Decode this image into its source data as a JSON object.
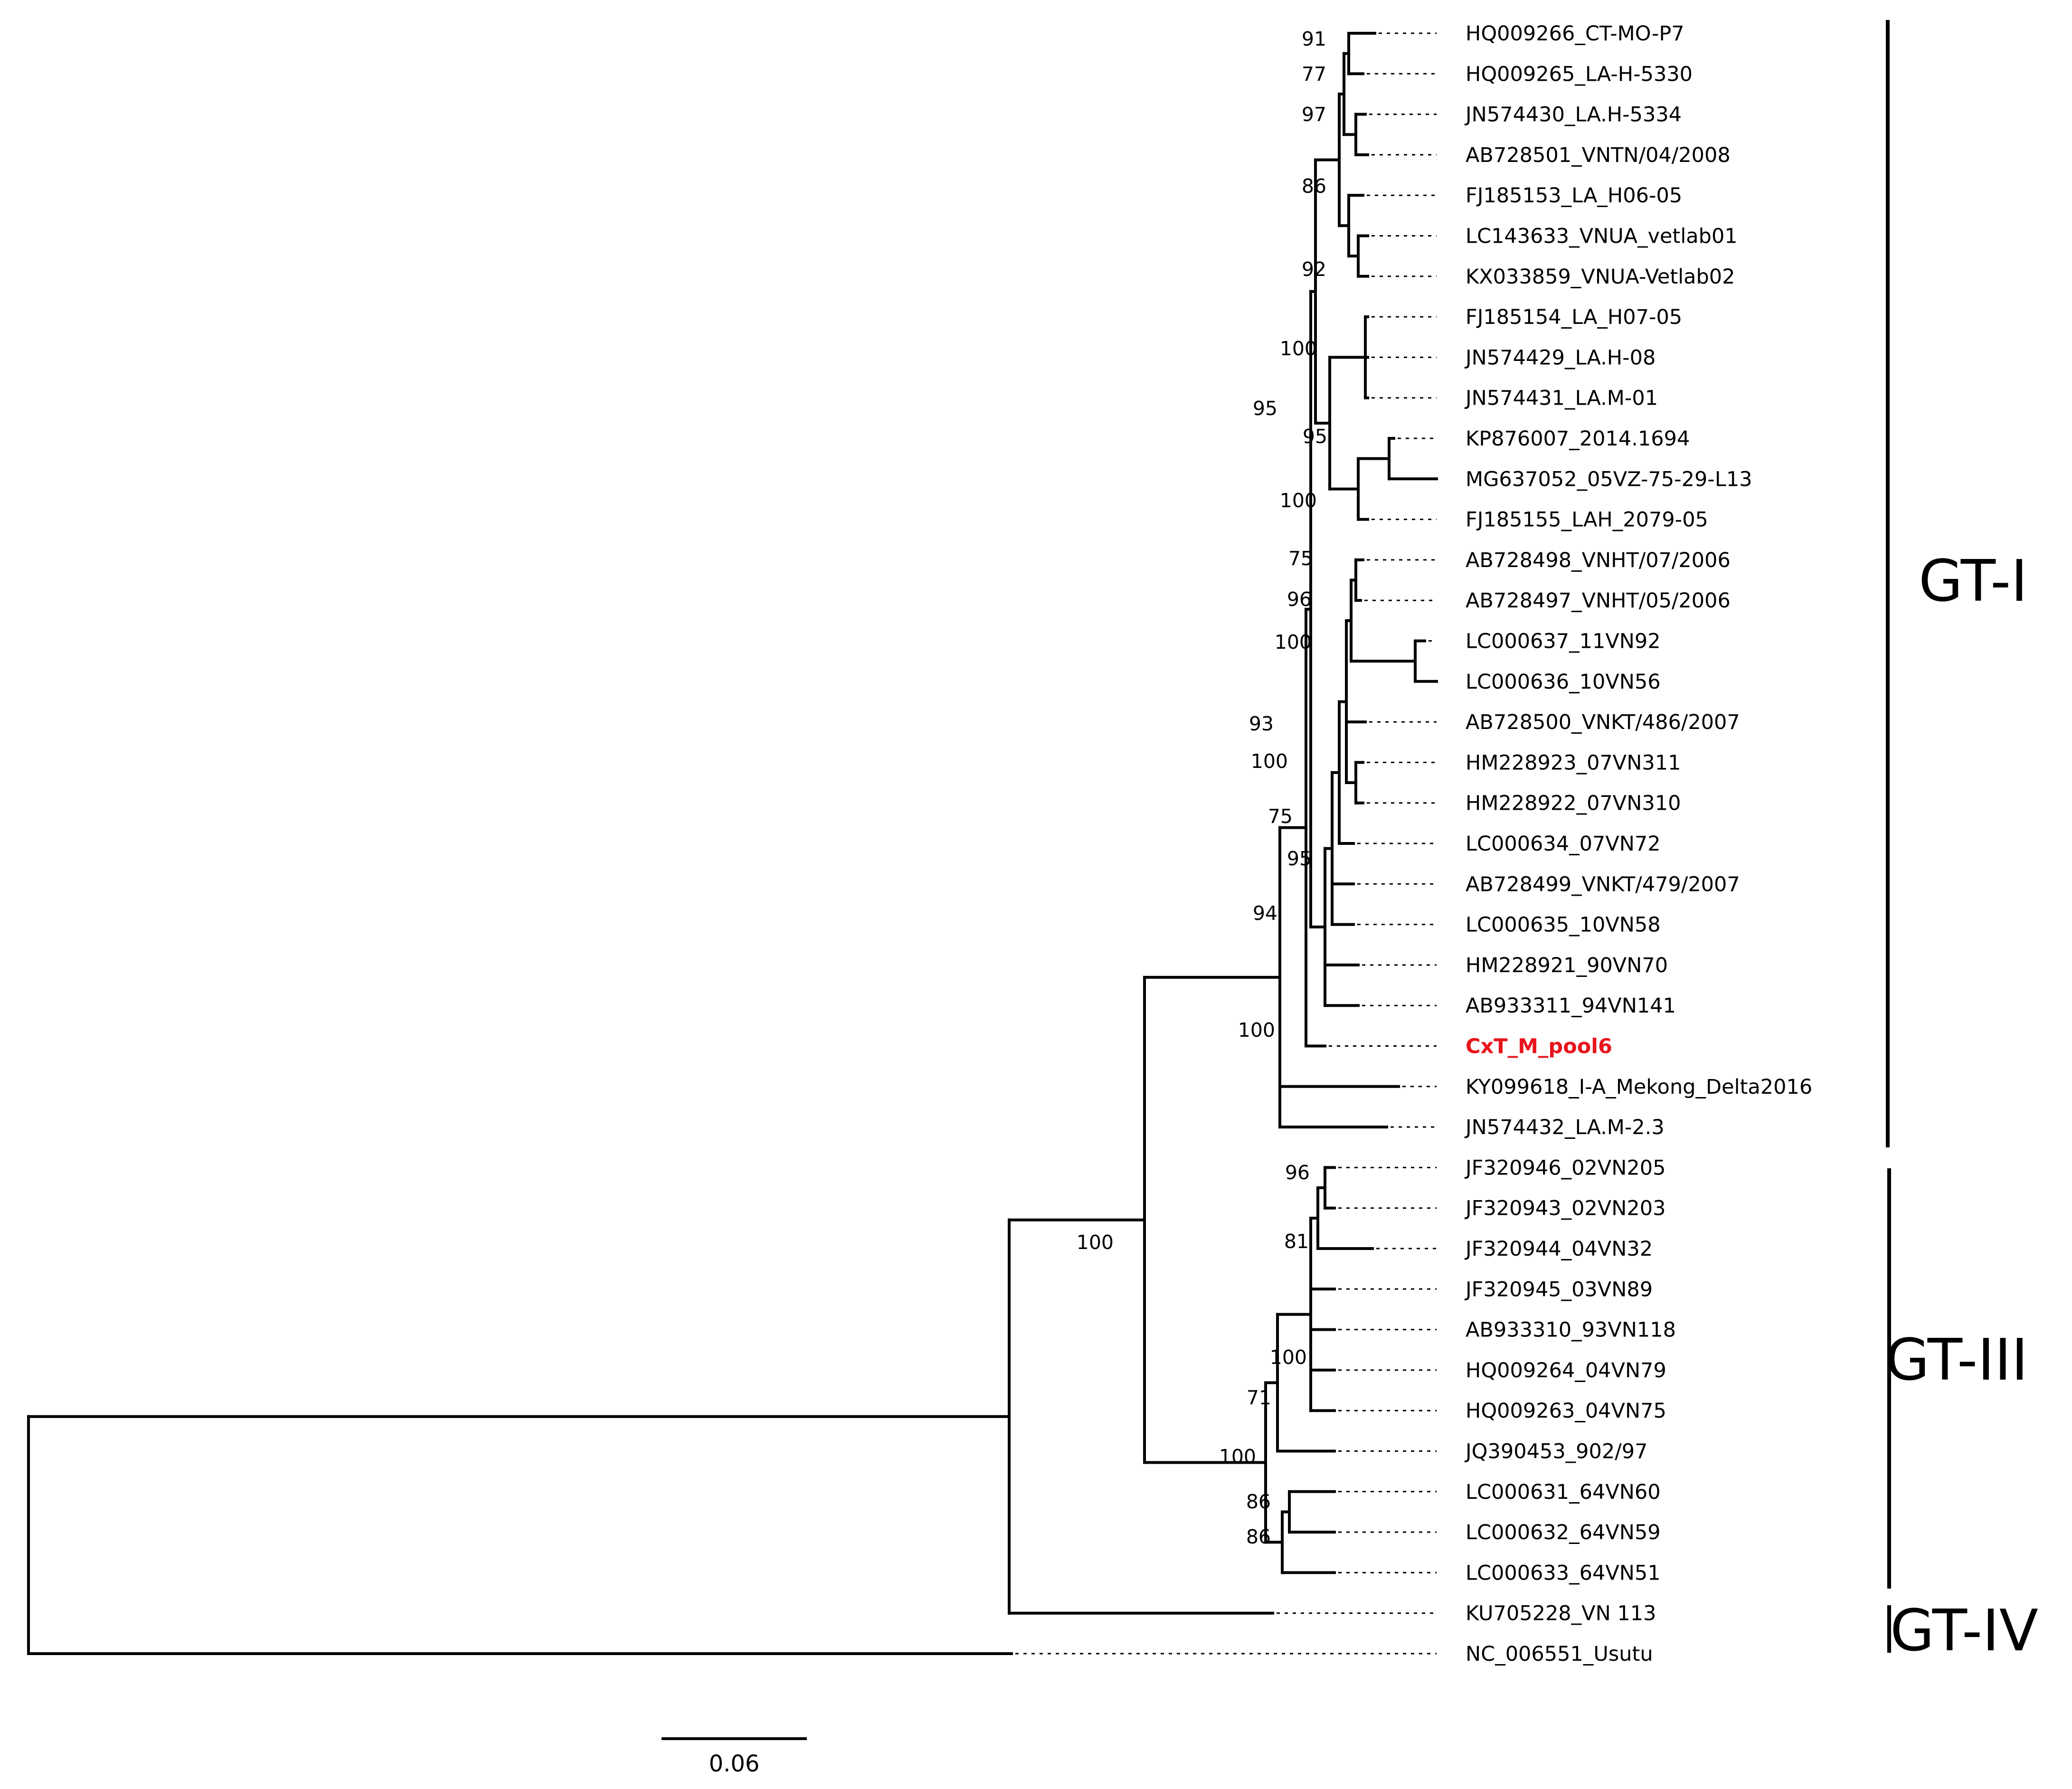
{
  "tree": {
    "highlight_color": "#e8141c",
    "scale_bar_label": "0.06",
    "taxa": [
      "HQ009266_CT-MO-P7",
      "HQ009265_LA-H-5330",
      "JN574430_LA.H-5334",
      "AB728501_VNTN/04/2008",
      "FJ185153_LA_H06-05",
      "LC143633_VNUA_vetlab01",
      "KX033859_VNUA-Vetlab02",
      "FJ185154_LA_H07-05",
      "JN574429_LA.H-08",
      "JN574431_LA.M-01",
      "KP876007_2014.1694",
      "MG637052_05VZ-75-29-L13",
      "FJ185155_LAH_2079-05",
      "AB728498_VNHT/07/2006",
      "AB728497_VNHT/05/2006",
      "LC000637_11VN92",
      "LC000636_10VN56",
      "AB728500_VNKT/486/2007",
      "HM228923_07VN311",
      "HM228922_07VN310",
      "LC000634_07VN72",
      "AB728499_VNKT/479/2007",
      "LC000635_10VN58",
      "HM228921_90VN70",
      "AB933311_94VN141",
      "CxT_M_pool6",
      "KY099618_I-A_Mekong_Delta2016",
      "JN574432_LA.M-2.3",
      "JF320946_02VN205",
      "JF320943_02VN203",
      "JF320944_04VN32",
      "JF320945_03VN89",
      "AB933310_93VN118",
      "HQ009264_04VN79",
      "HQ009263_04VN75",
      "JQ390453_902/97",
      "LC000631_64VN60",
      "LC000632_64VN59",
      "LC000633_64VN51",
      "KU705228_VN 113",
      "NC_006551_Usutu"
    ],
    "highlighted_taxon": "CxT_M_pool6",
    "bootstrap_values": [
      "91",
      "77",
      "97",
      "86",
      "92",
      "100",
      "95",
      "95",
      "100",
      "75",
      "96",
      "100",
      "93",
      "100",
      "75",
      "95",
      "94",
      "100",
      "100",
      "96",
      "81",
      "100",
      "71",
      "100",
      "86",
      "86"
    ],
    "genotype_groups": [
      {
        "label": "GT-I",
        "first_taxon": "HQ009266_CT-MO-P7",
        "last_taxon": "JN574432_LA.M-2.3"
      },
      {
        "label": "GT-III",
        "first_taxon": "JF320946_02VN205",
        "last_taxon": "LC000633_64VN51"
      },
      {
        "label": "GT-IV",
        "first_taxon": "KU705228_VN 113",
        "last_taxon": "KU705228_VN 113"
      }
    ]
  }
}
